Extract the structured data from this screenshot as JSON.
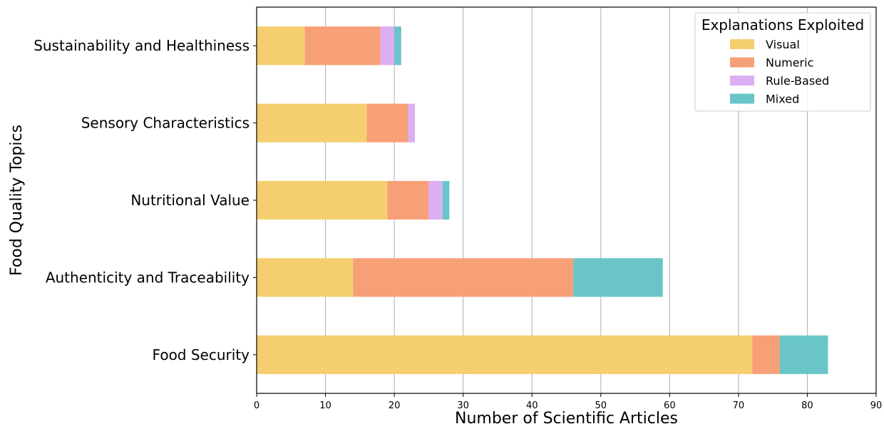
{
  "chart_data": {
    "type": "bar",
    "orientation": "horizontal",
    "stacked": true,
    "title": "",
    "xlabel": "Number of Scientific Articles",
    "ylabel": "Food Quality Topics",
    "xlim": [
      0,
      90
    ],
    "xticks": [
      0,
      10,
      20,
      30,
      40,
      50,
      60,
      70,
      80,
      90
    ],
    "grid": "vertical",
    "legend_title": "Explanations Exploited",
    "legend_position": "top-right",
    "categories": [
      "Food Security",
      "Authenticity and Traceability",
      "Nutritional Value",
      "Sensory Characteristics",
      "Sustainability and Healthiness"
    ],
    "series": [
      {
        "name": "Visual",
        "color": "#f5cf6f",
        "values": [
          72,
          14,
          19,
          16,
          7
        ]
      },
      {
        "name": "Numeric",
        "color": "#f7a077",
        "values": [
          4,
          32,
          6,
          6,
          11
        ]
      },
      {
        "name": "Rule-Based",
        "color": "#dcaff3",
        "values": [
          0,
          0,
          2,
          1,
          2
        ]
      },
      {
        "name": "Mixed",
        "color": "#69c5c8",
        "values": [
          7,
          13,
          1,
          0,
          1
        ]
      }
    ]
  }
}
